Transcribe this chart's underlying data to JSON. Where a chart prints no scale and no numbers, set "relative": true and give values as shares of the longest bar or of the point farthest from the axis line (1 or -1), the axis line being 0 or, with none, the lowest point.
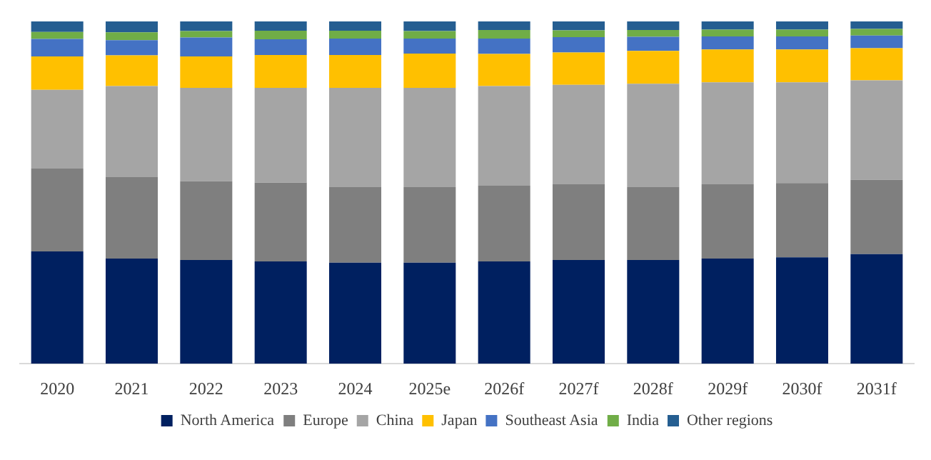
{
  "chart_data": {
    "type": "bar",
    "stacked": true,
    "relative": true,
    "grid": false,
    "legend": "bottom",
    "categories": [
      "2020",
      "2021",
      "2022",
      "2023",
      "2024",
      "2025e",
      "2026f",
      "2027f",
      "2028f",
      "2029f",
      "2030f",
      "2031f"
    ],
    "series": [
      {
        "name": "North America",
        "color": "#002060",
        "values": [
          0.328,
          0.307,
          0.303,
          0.299,
          0.295,
          0.295,
          0.299,
          0.303,
          0.303,
          0.307,
          0.311,
          0.32
        ]
      },
      {
        "name": "Europe",
        "color": "#7f7f7f",
        "values": [
          0.242,
          0.238,
          0.23,
          0.23,
          0.221,
          0.221,
          0.221,
          0.221,
          0.213,
          0.217,
          0.217,
          0.217
        ]
      },
      {
        "name": "China",
        "color": "#a5a5a5",
        "values": [
          0.23,
          0.266,
          0.273,
          0.277,
          0.29,
          0.29,
          0.291,
          0.291,
          0.302,
          0.298,
          0.294,
          0.291
        ]
      },
      {
        "name": "Japan",
        "color": "#ffc000",
        "values": [
          0.098,
          0.09,
          0.092,
          0.096,
          0.096,
          0.1,
          0.094,
          0.094,
          0.096,
          0.096,
          0.096,
          0.094
        ]
      },
      {
        "name": "Southeast Asia",
        "color": "#4472c4",
        "values": [
          0.051,
          0.044,
          0.055,
          0.046,
          0.048,
          0.044,
          0.045,
          0.045,
          0.041,
          0.038,
          0.038,
          0.037
        ]
      },
      {
        "name": "India",
        "color": "#70ad47",
        "values": [
          0.02,
          0.023,
          0.019,
          0.025,
          0.023,
          0.022,
          0.025,
          0.02,
          0.02,
          0.02,
          0.02,
          0.019
        ]
      },
      {
        "name": "Other regions",
        "color": "#255e91",
        "values": [
          0.031,
          0.032,
          0.028,
          0.027,
          0.027,
          0.028,
          0.025,
          0.026,
          0.025,
          0.024,
          0.024,
          0.022
        ]
      }
    ]
  }
}
